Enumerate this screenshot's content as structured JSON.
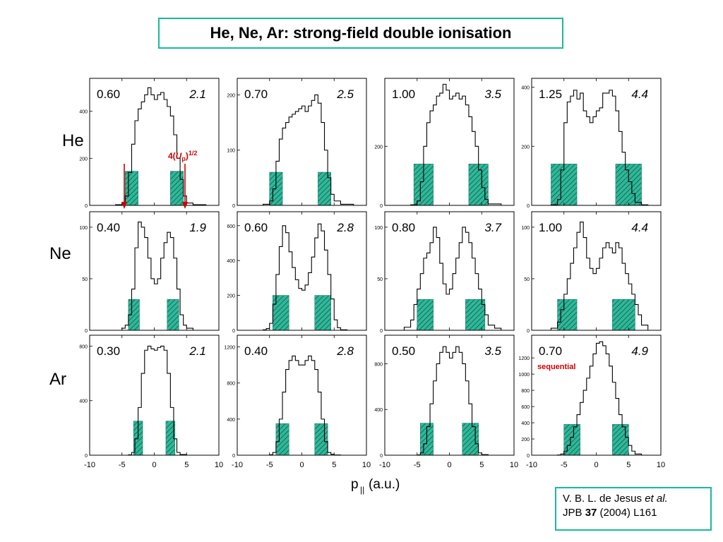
{
  "title": "He, Ne, Ar: strong-field double ionisation",
  "row_labels": [
    "He",
    "Ne",
    "Ar"
  ],
  "xlabel_main": "p",
  "xlabel_sub": "||",
  "xlabel_unit": "(a.u.)",
  "x_ticks": [
    "-10",
    "-5",
    "0",
    "5",
    "10"
  ],
  "annotation_he": {
    "text_main": "4(",
    "text_u": "U",
    "text_p": "p",
    "text_close": ")",
    "text_exp": "1/2",
    "color": "#cc0000"
  },
  "annotation_ar": {
    "text": "sequential",
    "color": "#cc0000"
  },
  "reference": {
    "line1_a": "V. B. L. de Jesus ",
    "line1_b": "et al.",
    "line2_a": "JPB ",
    "line2_b": "37",
    "line2_c": " (2004) L161"
  },
  "colors": {
    "accent": "#1ab99b",
    "hatch": "#2fb89a",
    "line": "#000000",
    "arrow": "#cc0000"
  },
  "chart_data": [
    {
      "type": "line",
      "row": "He",
      "col": 1,
      "intensity": "0.60",
      "ratio": "2.1",
      "xlim": [
        -10,
        10
      ],
      "ylim": [
        0,
        540
      ],
      "y_ticks": [
        "0",
        "200",
        "400"
      ],
      "y_tick_values": [
        0,
        200,
        400
      ],
      "peaks": [
        [
          -1.2,
          480
        ],
        [
          1.0,
          470
        ]
      ],
      "x": [
        -10,
        -8,
        -6,
        -5,
        -4.5,
        -4,
        -3.5,
        -3,
        -2.5,
        -2,
        -1.5,
        -1,
        -0.5,
        0,
        0.5,
        1,
        1.5,
        2,
        2.5,
        3,
        3.5,
        4,
        4.5,
        5,
        6,
        8,
        10
      ],
      "values": [
        0,
        0,
        3,
        10,
        40,
        140,
        260,
        360,
        410,
        440,
        470,
        500,
        470,
        450,
        470,
        480,
        450,
        420,
        380,
        300,
        200,
        110,
        40,
        10,
        3,
        0,
        0
      ],
      "shaded": [
        [
          -4.5,
          -2.5
        ],
        [
          2.5,
          4.5
        ]
      ],
      "shaded_height": 145
    },
    {
      "type": "line",
      "row": "He",
      "col": 2,
      "intensity": "0.70",
      "ratio": "2.5",
      "xlim": [
        -10,
        10
      ],
      "ylim": [
        0,
        230
      ],
      "y_ticks": [
        "0",
        "100",
        "200"
      ],
      "y_tick_values": [
        0,
        100,
        200
      ],
      "x": [
        -10,
        -8,
        -6,
        -5,
        -4.5,
        -4,
        -3.5,
        -3,
        -2.5,
        -2,
        -1.5,
        -1,
        -0.5,
        0,
        0.5,
        1,
        1.5,
        2,
        2.5,
        3,
        3.5,
        4,
        4.5,
        5,
        6,
        8,
        10
      ],
      "values": [
        0,
        0,
        2,
        8,
        30,
        80,
        120,
        140,
        150,
        160,
        165,
        170,
        175,
        180,
        170,
        180,
        190,
        200,
        185,
        150,
        100,
        50,
        20,
        8,
        2,
        0,
        0
      ],
      "shaded": [
        [
          -5,
          -3
        ],
        [
          2.5,
          4.5
        ]
      ],
      "shaded_height": 60
    },
    {
      "type": "line",
      "row": "He",
      "col": 3,
      "intensity": "1.00",
      "ratio": "3.5",
      "xlim": [
        -10,
        10
      ],
      "ylim": [
        0,
        430
      ],
      "y_ticks": [
        "0",
        "200"
      ],
      "y_tick_values": [
        0,
        200
      ],
      "x": [
        -10,
        -8,
        -6,
        -5,
        -4.5,
        -4,
        -3.5,
        -3,
        -2.5,
        -2,
        -1.5,
        -1,
        -0.5,
        0,
        0.5,
        1,
        1.5,
        2,
        2.5,
        3,
        3.5,
        4,
        4.5,
        5,
        5.5,
        6,
        8,
        10
      ],
      "values": [
        0,
        0,
        2,
        15,
        80,
        200,
        280,
        320,
        340,
        370,
        380,
        410,
        390,
        360,
        370,
        380,
        360,
        370,
        340,
        300,
        250,
        200,
        120,
        60,
        20,
        5,
        0,
        0
      ],
      "shaded": [
        [
          -5.5,
          -2.5
        ],
        [
          3,
          6
        ]
      ],
      "shaded_height": 140
    },
    {
      "type": "line",
      "row": "He",
      "col": 4,
      "intensity": "1.25",
      "ratio": "4.4",
      "xlim": [
        -10,
        10
      ],
      "ylim": [
        0,
        430
      ],
      "y_ticks": [
        "0",
        "200",
        "400"
      ],
      "y_tick_values": [
        0,
        200,
        400
      ],
      "x": [
        -10,
        -8,
        -7,
        -6,
        -5.5,
        -5,
        -4.5,
        -4,
        -3.5,
        -3,
        -2.5,
        -2,
        -1.5,
        -1,
        -0.5,
        0,
        0.5,
        1,
        1.5,
        2,
        2.5,
        3,
        3.5,
        4,
        4.5,
        5,
        5.5,
        6,
        7,
        8,
        10
      ],
      "values": [
        0,
        0,
        2,
        20,
        120,
        280,
        350,
        370,
        390,
        360,
        380,
        320,
        300,
        280,
        300,
        320,
        330,
        380,
        380,
        390,
        370,
        320,
        250,
        180,
        120,
        80,
        40,
        10,
        2,
        0,
        0
      ],
      "shaded": [
        [
          -7,
          -3
        ],
        [
          3,
          7
        ]
      ],
      "shaded_height": 140
    },
    {
      "type": "line",
      "row": "Ne",
      "col": 1,
      "intensity": "0.40",
      "ratio": "1.9",
      "xlim": [
        -10,
        10
      ],
      "ylim": [
        0,
        115
      ],
      "y_ticks": [
        "0",
        "50",
        "100"
      ],
      "y_tick_values": [
        0,
        50,
        100
      ],
      "x": [
        -10,
        -6,
        -5,
        -4.5,
        -4,
        -3.5,
        -3,
        -2.5,
        -2,
        -1.5,
        -1,
        -0.5,
        0,
        0.5,
        1,
        1.5,
        2,
        2.5,
        3,
        3.5,
        4,
        4.5,
        5,
        6,
        10
      ],
      "values": [
        0,
        0,
        2,
        5,
        15,
        40,
        80,
        105,
        100,
        90,
        70,
        50,
        45,
        50,
        70,
        85,
        95,
        90,
        70,
        40,
        15,
        5,
        2,
        0,
        0
      ],
      "shaded": [
        [
          -4,
          -2.3
        ],
        [
          2,
          3.8
        ]
      ],
      "shaded_height": 30
    },
    {
      "type": "line",
      "row": "Ne",
      "col": 2,
      "intensity": "0.60",
      "ratio": "2.8",
      "xlim": [
        -10,
        10
      ],
      "ylim": [
        0,
        680
      ],
      "y_ticks": [
        "0",
        "200",
        "400",
        "600"
      ],
      "y_tick_values": [
        0,
        200,
        400,
        600
      ],
      "x": [
        -10,
        -7,
        -6,
        -5.5,
        -5,
        -4.5,
        -4,
        -3.5,
        -3,
        -2.5,
        -2,
        -1.5,
        -1,
        -0.5,
        0,
        0.5,
        1,
        1.5,
        2,
        2.5,
        3,
        3.5,
        4,
        4.5,
        5,
        5.5,
        6,
        7,
        10
      ],
      "values": [
        0,
        0,
        3,
        10,
        40,
        150,
        320,
        480,
        600,
        560,
        450,
        360,
        290,
        240,
        230,
        260,
        330,
        420,
        530,
        610,
        570,
        460,
        320,
        180,
        60,
        15,
        3,
        0,
        0
      ],
      "shaded": [
        [
          -4.5,
          -2
        ],
        [
          2,
          4.5
        ]
      ],
      "shaded_height": 200
    },
    {
      "type": "line",
      "row": "Ne",
      "col": 3,
      "intensity": "0.80",
      "ratio": "3.7",
      "xlim": [
        -10,
        10
      ],
      "ylim": [
        0,
        115
      ],
      "y_ticks": [
        "0",
        "50",
        "100"
      ],
      "y_tick_values": [
        0,
        50,
        100
      ],
      "x": [
        -10,
        -8,
        -7,
        -6,
        -5.5,
        -5,
        -4.5,
        -4,
        -3.5,
        -3,
        -2.5,
        -2,
        -1.5,
        -1,
        -0.5,
        0,
        0.5,
        1,
        1.5,
        2,
        2.5,
        3,
        3.5,
        4,
        4.5,
        5,
        5.5,
        6,
        7,
        8,
        10
      ],
      "values": [
        0,
        0,
        3,
        10,
        25,
        40,
        55,
        70,
        75,
        85,
        100,
        90,
        65,
        45,
        35,
        40,
        55,
        70,
        85,
        100,
        95,
        85,
        70,
        55,
        40,
        25,
        15,
        5,
        2,
        0,
        0
      ],
      "shaded": [
        [
          -5,
          -2.5
        ],
        [
          2.5,
          5.5
        ]
      ],
      "shaded_height": 30
    },
    {
      "type": "line",
      "row": "Ne",
      "col": 4,
      "intensity": "1.00",
      "ratio": "4.4",
      "xlim": [
        -10,
        10
      ],
      "ylim": [
        0,
        115
      ],
      "y_ticks": [
        "0",
        "50",
        "100"
      ],
      "y_tick_values": [
        0,
        50,
        100
      ],
      "x": [
        -10,
        -8,
        -7,
        -6,
        -5.5,
        -5,
        -4.5,
        -4,
        -3.5,
        -3,
        -2.5,
        -2,
        -1.5,
        -1,
        -0.5,
        0,
        0.5,
        1,
        1.5,
        2,
        2.5,
        3,
        3.5,
        4,
        4.5,
        5,
        5.5,
        6,
        6.5,
        7,
        8,
        10
      ],
      "values": [
        0,
        0,
        2,
        8,
        20,
        35,
        50,
        65,
        80,
        95,
        105,
        90,
        70,
        60,
        55,
        60,
        70,
        80,
        85,
        80,
        75,
        85,
        80,
        65,
        55,
        45,
        35,
        25,
        15,
        5,
        0,
        0
      ],
      "shaded": [
        [
          -6,
          -3
        ],
        [
          2.5,
          6
        ]
      ],
      "shaded_height": 30
    },
    {
      "type": "line",
      "row": "Ar",
      "col": 1,
      "intensity": "0.30",
      "ratio": "2.1",
      "xlim": [
        -10,
        10
      ],
      "ylim": [
        0,
        880
      ],
      "y_ticks": [
        "0",
        "400",
        "800"
      ],
      "y_tick_values": [
        0,
        400,
        800
      ],
      "x": [
        -10,
        -5,
        -4,
        -3.5,
        -3,
        -2.5,
        -2,
        -1.5,
        -1,
        -0.5,
        0,
        0.5,
        1,
        1.5,
        2,
        2.5,
        3,
        3.5,
        4,
        5,
        10
      ],
      "values": [
        0,
        0,
        3,
        20,
        120,
        350,
        600,
        770,
        800,
        780,
        770,
        790,
        800,
        770,
        600,
        350,
        120,
        20,
        5,
        0,
        0
      ],
      "shaded": [
        [
          -3.2,
          -1.8
        ],
        [
          1.8,
          3.2
        ]
      ],
      "shaded_height": 250
    },
    {
      "type": "line",
      "row": "Ar",
      "col": 2,
      "intensity": "0.40",
      "ratio": "2.8",
      "xlim": [
        -10,
        10
      ],
      "ylim": [
        0,
        1330
      ],
      "y_ticks": [
        "0",
        "400",
        "800",
        "1200"
      ],
      "y_tick_values": [
        0,
        400,
        800,
        1200
      ],
      "x": [
        -10,
        -6,
        -5,
        -4.5,
        -4,
        -3.5,
        -3,
        -2.5,
        -2,
        -1.5,
        -1,
        -0.5,
        0,
        0.5,
        1,
        1.5,
        2,
        2.5,
        3,
        3.5,
        4,
        4.5,
        5,
        6,
        10
      ],
      "values": [
        0,
        0,
        5,
        30,
        150,
        400,
        700,
        950,
        1050,
        1100,
        1050,
        1000,
        1000,
        1050,
        1100,
        1050,
        950,
        700,
        400,
        150,
        30,
        10,
        3,
        0,
        0
      ],
      "shaded": [
        [
          -4,
          -2
        ],
        [
          2,
          4
        ]
      ],
      "shaded_height": 350
    },
    {
      "type": "line",
      "row": "Ar",
      "col": 3,
      "intensity": "0.50",
      "ratio": "3.5",
      "xlim": [
        -10,
        10
      ],
      "ylim": [
        0,
        1050
      ],
      "y_ticks": [
        "0",
        "400",
        "800"
      ],
      "y_tick_values": [
        0,
        400,
        800
      ],
      "x": [
        -10,
        -6,
        -5,
        -4.5,
        -4,
        -3.5,
        -3,
        -2.5,
        -2,
        -1.5,
        -1,
        -0.5,
        0,
        0.5,
        1,
        1.5,
        2,
        2.5,
        3,
        3.5,
        4,
        4.5,
        5,
        6,
        10
      ],
      "values": [
        0,
        0,
        3,
        20,
        100,
        250,
        450,
        650,
        800,
        900,
        950,
        900,
        850,
        900,
        950,
        900,
        800,
        650,
        450,
        250,
        100,
        20,
        5,
        0,
        0
      ],
      "shaded": [
        [
          -4.5,
          -2.5
        ],
        [
          2,
          4.5
        ]
      ],
      "shaded_height": 280
    },
    {
      "type": "line",
      "row": "Ar",
      "col": 4,
      "intensity": "0.70",
      "ratio": "4.9",
      "xlim": [
        -10,
        10
      ],
      "ylim": [
        0,
        1480
      ],
      "y_ticks": [
        "0",
        "200",
        "400",
        "600",
        "800",
        "1000",
        "1200"
      ],
      "y_tick_values": [
        0,
        200,
        400,
        600,
        800,
        1000,
        1200
      ],
      "x": [
        -10,
        -7,
        -6,
        -5.5,
        -5,
        -4.5,
        -4,
        -3.5,
        -3,
        -2.5,
        -2,
        -1.5,
        -1,
        -0.5,
        0,
        0.5,
        1,
        1.5,
        2,
        2.5,
        3,
        3.5,
        4,
        4.5,
        5,
        5.5,
        6,
        7,
        10
      ],
      "values": [
        0,
        0,
        3,
        15,
        50,
        120,
        220,
        350,
        500,
        650,
        800,
        950,
        1100,
        1250,
        1380,
        1400,
        1350,
        1250,
        1100,
        900,
        700,
        500,
        350,
        220,
        120,
        50,
        15,
        0,
        0
      ],
      "shaded": [
        [
          -5,
          -2.5
        ],
        [
          2.5,
          5
        ]
      ],
      "shaded_height": 380
    }
  ]
}
